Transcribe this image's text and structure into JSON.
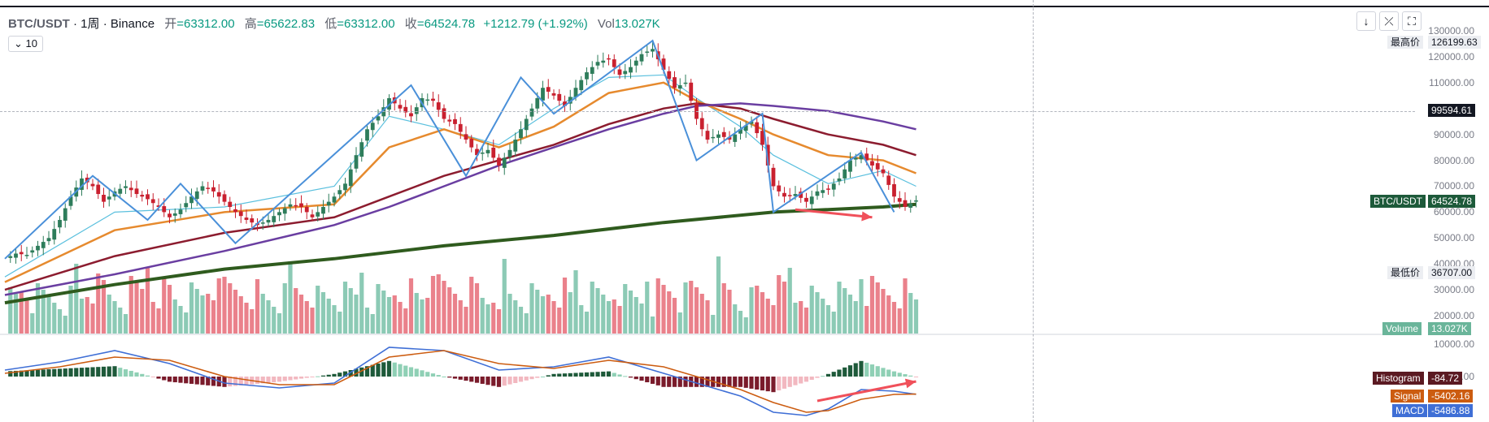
{
  "header": {
    "symbol": "BTC/USDT",
    "interval": "1周",
    "exchange": "Binance",
    "open_label": "开",
    "open": "=63312.00",
    "high_label": "高",
    "high": "=65622.83",
    "low_label": "低",
    "low": "=63312.00",
    "close_label": "收",
    "close": "=64524.78",
    "change": "+1212.79 (+1.92%)",
    "vol_label": "Vol",
    "vol": "13.027K"
  },
  "indicator_badge": "10",
  "toolbar": {
    "down_icon": "arrow-down-icon",
    "collapse_icon": "collapse-icon",
    "fullscreen_icon": "fullscreen-icon"
  },
  "labels": {
    "high_price_label": "最高价",
    "high_price": "126199.63",
    "crosshair_price": "99594.61",
    "symbol_label": "BTC/USDT",
    "last_price": "64524.78",
    "low_price_label": "最低价",
    "low_price": "36707.00",
    "volume_label": "Volume",
    "volume_value": "13.027K",
    "histogram_label": "Histogram",
    "histogram_value": "-84.72",
    "signal_label": "Signal",
    "signal_value": "-5402.16",
    "macd_label": "MACD",
    "macd_value": "-5486.88"
  },
  "colors": {
    "up": "#2e7d5b",
    "down": "#c9202f",
    "vol_up": "#7fc4ad",
    "vol_down": "#e8737e",
    "ma10": "#5bc0de",
    "ma20": "#e68a2e",
    "ma50": "#8c1c2f",
    "ma100": "#6a3ea1",
    "ma200": "#2f5b1e",
    "zigzag": "#4a90d9",
    "arrow": "#f0505a",
    "macd": "#3f6fd6",
    "signal": "#cc5c10"
  },
  "chart_data": {
    "type": "candlestick",
    "y_ticks": [
      130000,
      120000,
      110000,
      100000,
      90000,
      80000,
      70000,
      60000,
      50000,
      40000,
      30000,
      20000
    ],
    "y_range": [
      15000,
      130000
    ],
    "macd_ticks": [
      10000,
      0
    ],
    "close_path": [
      [
        0,
        42000
      ],
      [
        2,
        44000
      ],
      [
        4,
        43500
      ],
      [
        6,
        47000
      ],
      [
        8,
        50000
      ],
      [
        10,
        57000
      ],
      [
        12,
        66000
      ],
      [
        14,
        73000
      ],
      [
        16,
        70000
      ],
      [
        18,
        64000
      ],
      [
        20,
        68000
      ],
      [
        22,
        70000
      ],
      [
        24,
        67000
      ],
      [
        26,
        65000
      ],
      [
        28,
        62000
      ],
      [
        30,
        58000
      ],
      [
        32,
        61000
      ],
      [
        34,
        66000
      ],
      [
        36,
        70000
      ],
      [
        38,
        68000
      ],
      [
        40,
        64000
      ],
      [
        42,
        60000
      ],
      [
        44,
        57000
      ],
      [
        46,
        55000
      ],
      [
        48,
        57000
      ],
      [
        50,
        60000
      ],
      [
        52,
        63000
      ],
      [
        54,
        62000
      ],
      [
        56,
        58000
      ],
      [
        58,
        62000
      ],
      [
        60,
        66000
      ],
      [
        62,
        71000
      ],
      [
        64,
        82000
      ],
      [
        66,
        92000
      ],
      [
        68,
        97000
      ],
      [
        70,
        104000
      ],
      [
        72,
        100000
      ],
      [
        74,
        97000
      ],
      [
        76,
        104000
      ],
      [
        78,
        103000
      ],
      [
        80,
        96000
      ],
      [
        82,
        94000
      ],
      [
        84,
        88000
      ],
      [
        86,
        82000
      ],
      [
        88,
        84000
      ],
      [
        90,
        78000
      ],
      [
        92,
        84000
      ],
      [
        94,
        92000
      ],
      [
        96,
        100000
      ],
      [
        98,
        108000
      ],
      [
        100,
        105000
      ],
      [
        102,
        101000
      ],
      [
        104,
        108000
      ],
      [
        106,
        114000
      ],
      [
        108,
        118000
      ],
      [
        110,
        119000
      ],
      [
        112,
        113000
      ],
      [
        114,
        116000
      ],
      [
        116,
        121000
      ],
      [
        118,
        123000
      ],
      [
        120,
        115000
      ],
      [
        122,
        108000
      ],
      [
        124,
        110000
      ],
      [
        126,
        96000
      ],
      [
        128,
        88000
      ],
      [
        130,
        90000
      ],
      [
        132,
        88000
      ],
      [
        134,
        92000
      ],
      [
        136,
        95000
      ],
      [
        138,
        86000
      ],
      [
        140,
        70000
      ],
      [
        142,
        66000
      ],
      [
        144,
        67000
      ],
      [
        146,
        64000
      ],
      [
        148,
        68000
      ],
      [
        150,
        69000
      ],
      [
        152,
        73000
      ],
      [
        154,
        80000
      ],
      [
        156,
        82000
      ],
      [
        158,
        78000
      ],
      [
        160,
        75000
      ],
      [
        162,
        66000
      ],
      [
        164,
        62000
      ],
      [
        166,
        64524.78
      ]
    ],
    "ma_series": [
      {
        "key": "ma10",
        "values": [
          [
            0,
            35000
          ],
          [
            20,
            60000
          ],
          [
            40,
            62000
          ],
          [
            60,
            70000
          ],
          [
            70,
            97000
          ],
          [
            80,
            92000
          ],
          [
            90,
            86000
          ],
          [
            100,
            100000
          ],
          [
            110,
            112000
          ],
          [
            120,
            113000
          ],
          [
            126,
            104000
          ],
          [
            134,
            93000
          ],
          [
            140,
            82000
          ],
          [
            150,
            71000
          ],
          [
            160,
            76000
          ],
          [
            166,
            70000
          ]
        ]
      },
      {
        "key": "ma20",
        "values": [
          [
            0,
            33000
          ],
          [
            20,
            53000
          ],
          [
            40,
            60000
          ],
          [
            60,
            63000
          ],
          [
            70,
            85000
          ],
          [
            80,
            92000
          ],
          [
            90,
            85000
          ],
          [
            100,
            93000
          ],
          [
            110,
            106000
          ],
          [
            120,
            110000
          ],
          [
            126,
            103000
          ],
          [
            134,
            96000
          ],
          [
            140,
            90000
          ],
          [
            150,
            82000
          ],
          [
            160,
            80000
          ],
          [
            166,
            75000
          ]
        ]
      },
      {
        "key": "ma50",
        "values": [
          [
            0,
            30000
          ],
          [
            20,
            43000
          ],
          [
            40,
            52000
          ],
          [
            60,
            58000
          ],
          [
            70,
            66000
          ],
          [
            80,
            74000
          ],
          [
            90,
            80000
          ],
          [
            100,
            86000
          ],
          [
            110,
            94000
          ],
          [
            120,
            100000
          ],
          [
            126,
            102000
          ],
          [
            134,
            100000
          ],
          [
            140,
            96000
          ],
          [
            150,
            90000
          ],
          [
            160,
            86000
          ],
          [
            166,
            82000
          ]
        ]
      },
      {
        "key": "ma100",
        "values": [
          [
            0,
            28000
          ],
          [
            20,
            36000
          ],
          [
            40,
            45000
          ],
          [
            60,
            55000
          ],
          [
            70,
            62000
          ],
          [
            80,
            70000
          ],
          [
            90,
            78000
          ],
          [
            100,
            85000
          ],
          [
            110,
            92000
          ],
          [
            120,
            98000
          ],
          [
            126,
            101000
          ],
          [
            134,
            102000
          ],
          [
            140,
            101000
          ],
          [
            150,
            99000
          ],
          [
            160,
            95000
          ],
          [
            166,
            92000
          ]
        ]
      },
      {
        "key": "ma200",
        "values": [
          [
            0,
            25000
          ],
          [
            20,
            32000
          ],
          [
            40,
            38000
          ],
          [
            60,
            42000
          ],
          [
            80,
            47000
          ],
          [
            100,
            51000
          ],
          [
            120,
            56000
          ],
          [
            140,
            60000
          ],
          [
            160,
            62000
          ],
          [
            166,
            63000
          ]
        ]
      }
    ],
    "zigzag": [
      [
        0,
        42000
      ],
      [
        16,
        74000
      ],
      [
        26,
        57000
      ],
      [
        32,
        71000
      ],
      [
        42,
        48000
      ],
      [
        74,
        109000
      ],
      [
        84,
        74000
      ],
      [
        94,
        112000
      ],
      [
        100,
        98000
      ],
      [
        118,
        126199.63
      ],
      [
        126,
        80000
      ],
      [
        138,
        98000
      ],
      [
        140,
        60000
      ],
      [
        156,
        83000
      ],
      [
        162,
        60000
      ]
    ],
    "arrow_price": [
      [
        144,
        61000
      ],
      [
        158,
        58000
      ]
    ],
    "macd_arrow": [
      [
        148,
        -7500
      ],
      [
        166,
        -1500
      ]
    ],
    "macd_range": [
      -14000,
      13000
    ],
    "macd_line": [
      [
        0,
        2000
      ],
      [
        10,
        4500
      ],
      [
        20,
        8000
      ],
      [
        30,
        4000
      ],
      [
        40,
        -2000
      ],
      [
        50,
        -3500
      ],
      [
        60,
        -2000
      ],
      [
        70,
        9000
      ],
      [
        80,
        8000
      ],
      [
        90,
        2000
      ],
      [
        100,
        3000
      ],
      [
        110,
        6000
      ],
      [
        120,
        1000
      ],
      [
        126,
        -2000
      ],
      [
        134,
        -6000
      ],
      [
        140,
        -11000
      ],
      [
        146,
        -12000
      ],
      [
        150,
        -10000
      ],
      [
        156,
        -4000
      ],
      [
        162,
        -4500
      ],
      [
        166,
        -5486.88
      ]
    ],
    "signal_line": [
      [
        0,
        1000
      ],
      [
        10,
        3000
      ],
      [
        20,
        6000
      ],
      [
        30,
        5000
      ],
      [
        40,
        0
      ],
      [
        50,
        -2500
      ],
      [
        60,
        -2500
      ],
      [
        70,
        6000
      ],
      [
        80,
        8000
      ],
      [
        90,
        4000
      ],
      [
        100,
        2500
      ],
      [
        110,
        5000
      ],
      [
        120,
        3000
      ],
      [
        126,
        0
      ],
      [
        134,
        -4000
      ],
      [
        140,
        -8000
      ],
      [
        146,
        -11000
      ],
      [
        150,
        -10500
      ],
      [
        156,
        -7000
      ],
      [
        162,
        -5500
      ],
      [
        166,
        -5402.16
      ]
    ],
    "last_histogram": -84.72
  }
}
